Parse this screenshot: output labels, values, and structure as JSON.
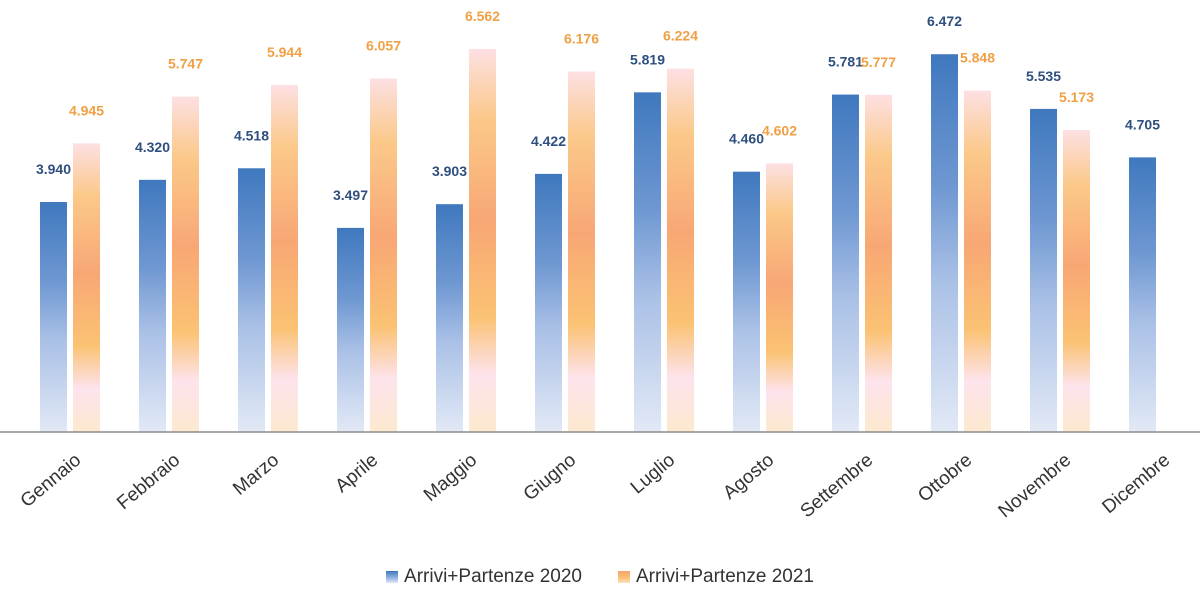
{
  "chart_data": {
    "type": "bar",
    "title": "",
    "xlabel": "",
    "ylabel": "",
    "ylim": [
      0,
      7
    ],
    "grid": false,
    "legend_position": "bottom",
    "categories": [
      "Gennaio",
      "Febbraio",
      "Marzo",
      "Aprile",
      "Maggio",
      "Giugno",
      "Luglio",
      "Agosto",
      "Settembre",
      "Ottobre",
      "Novembre",
      "Dicembre"
    ],
    "series": [
      {
        "name": "Arrivi+Partenze 2020",
        "color": "#3f78be",
        "label_color": "#2f4f7f",
        "values": [
          3.94,
          4.32,
          4.518,
          3.497,
          3.903,
          4.422,
          5.819,
          4.46,
          5.781,
          6.472,
          5.535,
          4.705
        ],
        "labels": [
          "3.940",
          "4.320",
          "4.518",
          "3.497",
          "3.903",
          "4.422",
          "5.819",
          "4.460",
          "5.781",
          "6.472",
          "5.535",
          "4.705"
        ]
      },
      {
        "name": "Arrivi+Partenze 2021",
        "color": "#f6a46a",
        "label_color": "#f0a044",
        "values": [
          4.945,
          5.747,
          5.944,
          6.057,
          6.562,
          6.176,
          6.224,
          4.602,
          5.777,
          5.848,
          5.173,
          null
        ],
        "labels": [
          "4.945",
          "5.747",
          "5.944",
          "6.057",
          "6.562",
          "6.176",
          "6.224",
          "4.602",
          "5.777",
          "5.848",
          "5.173",
          null
        ]
      }
    ]
  }
}
